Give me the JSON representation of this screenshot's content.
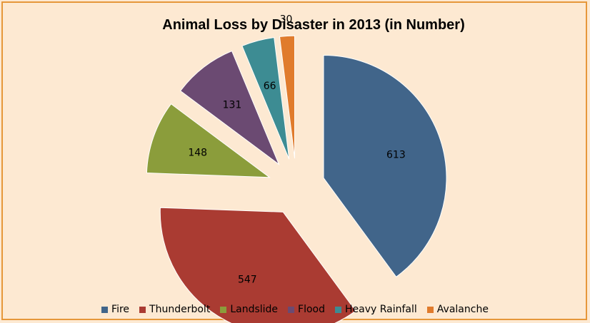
{
  "chart_data": {
    "type": "pie",
    "title": "Animal Loss by Disaster in 2013 (in Number)",
    "categories": [
      "Fire",
      "Thunderbolt",
      "Landslide",
      "Flood",
      "Heavy Rainfall",
      "Avalanche"
    ],
    "values": [
      613,
      547,
      148,
      131,
      66,
      30
    ],
    "colors": [
      "#41658a",
      "#aa3b32",
      "#8b9d3b",
      "#6b4a72",
      "#3d8c93",
      "#e07b2c"
    ],
    "exploded": true,
    "legend_position": "bottom",
    "background": "#fde9d2",
    "border_color": "#e6973a"
  }
}
